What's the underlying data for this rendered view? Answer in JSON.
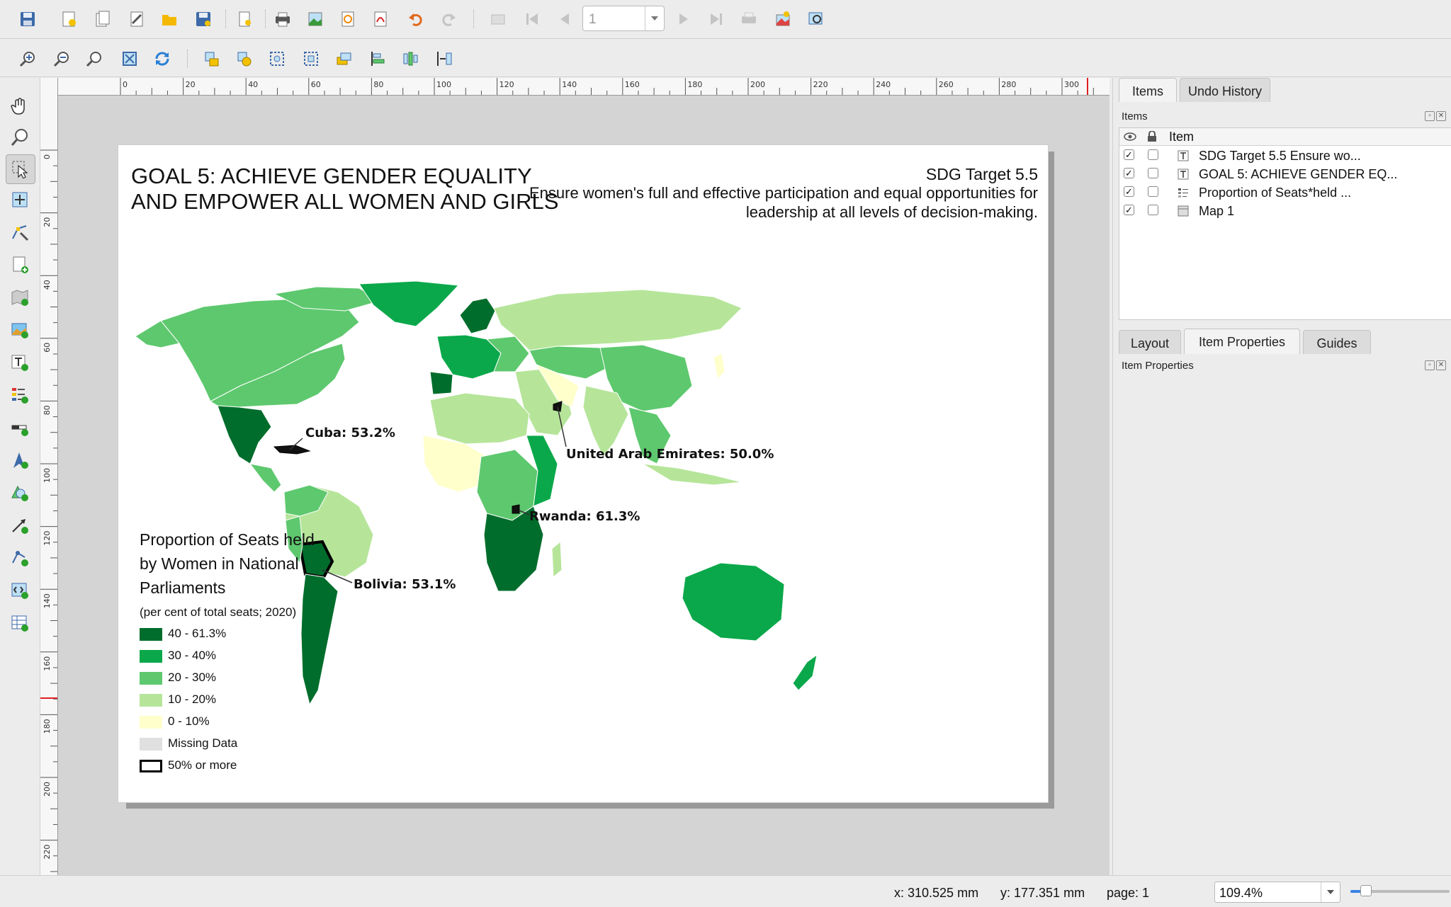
{
  "toolbar": {
    "page_number": "1"
  },
  "layout": {
    "title": "GOAL 5: ACHIEVE GENDER EQUALITY AND EMPOWER ALL WOMEN AND GIRLS",
    "title_line1": "GOAL 5: ACHIEVE GENDER EQUALITY",
    "title_line2": "AND EMPOWER ALL WOMEN AND GIRLS",
    "target_heading": "SDG Target 5.5",
    "target_text": "Ensure women's full and effective participation and equal opportunities for leadership at all levels of decision-making.",
    "map_labels": [
      {
        "text": "Cuba: 53.2%"
      },
      {
        "text": "United Arab Emirates: 50.0%"
      },
      {
        "text": "Rwanda: 61.3%"
      },
      {
        "text": "Bolivia: 53.1%"
      }
    ],
    "legend": {
      "title": "Proportion of Seats held by Women in National Parliaments",
      "subtitle": "(per cent of total seats; 2020)",
      "entries": [
        {
          "label": "40 - 61.3%",
          "color": "#006d2c"
        },
        {
          "label": "30 - 40%",
          "color": "#0aa84a"
        },
        {
          "label": "20 - 30%",
          "color": "#5ec86e"
        },
        {
          "label": "10 - 20%",
          "color": "#b6e59a"
        },
        {
          "label": "0 - 10%",
          "color": "#ffffcc"
        },
        {
          "label": "Missing Data",
          "color": "#e0e0e0"
        },
        {
          "label": "50% or more",
          "color": "#ffffff"
        }
      ]
    }
  },
  "ruler": {
    "h_ticks": [
      "0",
      "20",
      "40",
      "60",
      "80",
      "100",
      "120",
      "140",
      "160",
      "180",
      "200",
      "220",
      "240",
      "260",
      "280",
      "300"
    ],
    "v_ticks": [
      "0",
      "20",
      "40",
      "60",
      "80",
      "100",
      "120",
      "140",
      "160",
      "180",
      "200",
      "220"
    ]
  },
  "panel": {
    "top_tabs": [
      "Items",
      "Undo History"
    ],
    "items_title": "Items",
    "items_column": "Item",
    "items": [
      {
        "label": "SDG Target 5.5 Ensure wo...",
        "type": "text-icon"
      },
      {
        "label": "GOAL 5: ACHIEVE GENDER EQ...",
        "type": "text-icon"
      },
      {
        "label": "Proportion of Seats*held ...",
        "type": "legend-icon"
      },
      {
        "label": "Map 1",
        "type": "map-icon"
      }
    ],
    "bottom_tabs": [
      "Layout",
      "Item Properties",
      "Guides"
    ],
    "props_title": "Item Properties"
  },
  "status": {
    "x": "x: 310.525 mm",
    "y": "y: 177.351 mm",
    "page": "page: 1",
    "zoom": "109.4%"
  },
  "colors": {
    "accent": "#3a82e4",
    "dark_green": "#006d2c",
    "mid_green": "#0aa84a",
    "green": "#5ec86e",
    "light_green": "#b6e59a",
    "pale_yellow": "#ffffcc",
    "missing": "#e0e0e0"
  }
}
